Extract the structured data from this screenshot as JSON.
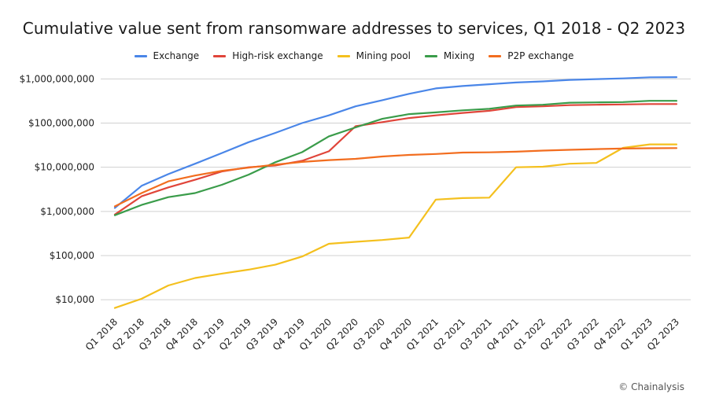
{
  "chart_data": {
    "type": "line",
    "title": "Cumulative value sent from ransomware addresses to services, Q1 2018 - Q2 2023",
    "xlabel": "",
    "ylabel": "",
    "yscale": "log",
    "ylim": [
      5000,
      1300000000
    ],
    "yticks": [
      10000,
      100000,
      1000000,
      10000000,
      100000000,
      1000000000
    ],
    "ytick_labels": [
      "$10,000",
      "$100,000",
      "$1,000,000",
      "$10,000,000",
      "$100,000,000",
      "$1,000,000,000"
    ],
    "grid": true,
    "legend_position": "top",
    "categories": [
      "Q1 2018",
      "Q2 2018",
      "Q3 2018",
      "Q4 2018",
      "Q1 2019",
      "Q2 2019",
      "Q3 2019",
      "Q4 2019",
      "Q1 2020",
      "Q2 2020",
      "Q3 2020",
      "Q4 2020",
      "Q1 2021",
      "Q2 2021",
      "Q3 2021",
      "Q4 2021",
      "Q1 2022",
      "Q2 2022",
      "Q3 2022",
      "Q4 2022",
      "Q1 2023",
      "Q2 2023"
    ],
    "series": [
      {
        "name": "Exchange",
        "color": "#4a86e8",
        "values": [
          1200000,
          3800000,
          7000000,
          12000000,
          21000000,
          37000000,
          60000000,
          100000000,
          150000000,
          240000000,
          330000000,
          460000000,
          610000000,
          690000000,
          760000000,
          830000000,
          880000000,
          950000000,
          990000000,
          1030000000,
          1090000000,
          1100000000
        ]
      },
      {
        "name": "High-risk exchange",
        "color": "#e0453a",
        "values": [
          850000,
          2200000,
          3500000,
          5200000,
          8000000,
          10000000,
          11000000,
          14000000,
          23000000,
          85000000,
          105000000,
          130000000,
          150000000,
          170000000,
          190000000,
          230000000,
          240000000,
          255000000,
          260000000,
          265000000,
          270000000,
          270000000
        ]
      },
      {
        "name": "Mining pool",
        "color": "#f4c01e",
        "values": [
          6500,
          10500,
          21000,
          31000,
          39000,
          48000,
          62000,
          95000,
          185000,
          205000,
          225000,
          255000,
          1850000,
          2000000,
          2050000,
          10000000,
          10300000,
          12000000,
          12500000,
          27500000,
          33000000,
          33000000
        ]
      },
      {
        "name": "Mixing",
        "color": "#3a9c4a",
        "values": [
          820000,
          1400000,
          2100000,
          2600000,
          4000000,
          6800000,
          13000000,
          22000000,
          50000000,
          80000000,
          125000000,
          160000000,
          175000000,
          195000000,
          210000000,
          250000000,
          260000000,
          290000000,
          295000000,
          300000000,
          320000000,
          320000000
        ]
      },
      {
        "name": "P2P exchange",
        "color": "#f26d1f",
        "values": [
          1300000,
          2600000,
          4800000,
          6500000,
          8300000,
          9800000,
          11500000,
          13200000,
          14500000,
          15500000,
          17500000,
          19000000,
          20000000,
          21500000,
          21800000,
          22500000,
          23800000,
          24800000,
          25800000,
          26500000,
          27000000,
          27200000
        ]
      }
    ]
  },
  "source": "© Chainalysis"
}
